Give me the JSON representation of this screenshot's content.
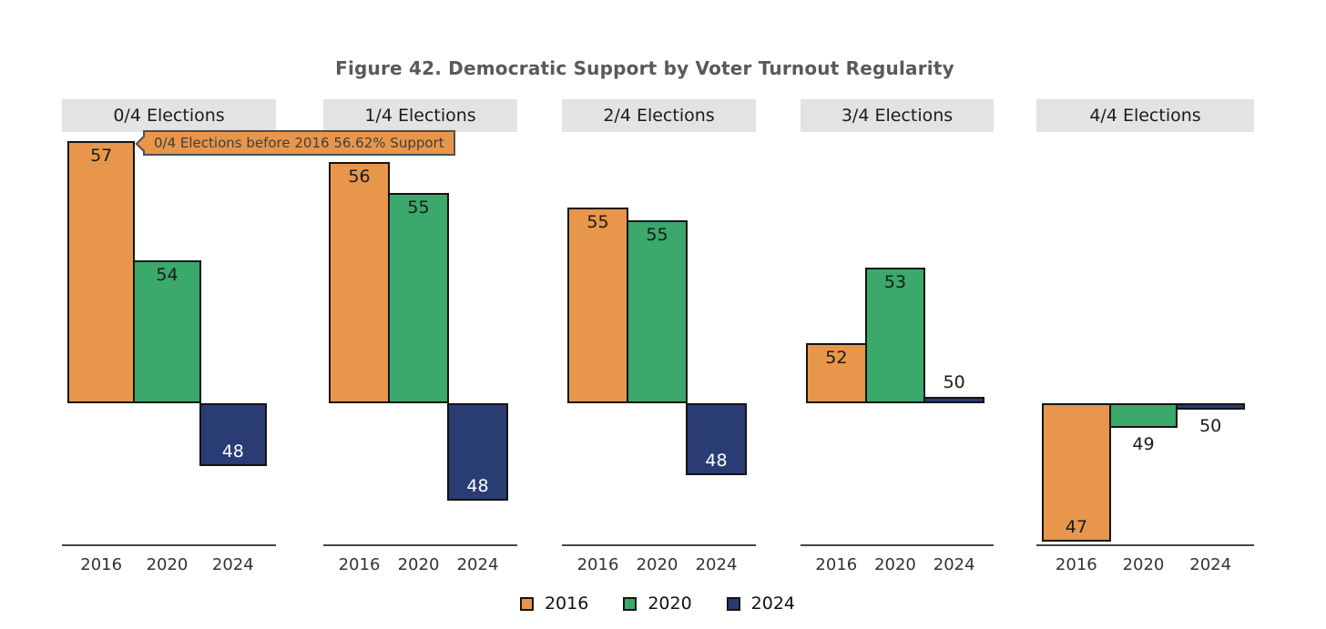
{
  "title": "Figure 42. Democratic Support by Voter Turnout Regularity",
  "tooltip": {
    "text": "0/4 Elections before 2016 56.62% Support"
  },
  "colors": {
    "series_2016": "#E8964B",
    "series_2020": "#3AA96B",
    "series_2024": "#293D74",
    "bar_border": "#141414",
    "header_bg": "#E3E3E3",
    "title_text": "#595959",
    "tooltip_border": "#4F4F4F"
  },
  "chart_data": {
    "type": "bar",
    "title": "Figure 42. Democratic Support by Voter Turnout Regularity",
    "baseline": 50,
    "x_categories": [
      "2016",
      "2020",
      "2024"
    ],
    "legend_position": "bottom",
    "grid": false,
    "series": [
      {
        "name": "2016",
        "color": "#E8964B",
        "dark_fill": false
      },
      {
        "name": "2020",
        "color": "#3AA96B",
        "dark_fill": false
      },
      {
        "name": "2024",
        "color": "#293D74",
        "dark_fill": true
      }
    ],
    "panels": [
      {
        "header": "0/4 Elections",
        "bars": [
          {
            "series": "2016",
            "label": "57",
            "value": 56.62
          },
          {
            "series": "2020",
            "label": "54",
            "value": 53.6
          },
          {
            "series": "2024",
            "label": "48",
            "value": 48.41
          }
        ]
      },
      {
        "header": "1/4 Elections",
        "bars": [
          {
            "series": "2016",
            "label": "56",
            "value": 56.1
          },
          {
            "series": "2020",
            "label": "55",
            "value": 55.32
          },
          {
            "series": "2024",
            "label": "48",
            "value": 47.54
          }
        ]
      },
      {
        "header": "2/4 Elections",
        "bars": [
          {
            "series": "2016",
            "label": "55",
            "value": 54.95
          },
          {
            "series": "2020",
            "label": "55",
            "value": 54.62
          },
          {
            "series": "2024",
            "label": "48",
            "value": 48.19
          }
        ]
      },
      {
        "header": "3/4 Elections",
        "bars": [
          {
            "series": "2016",
            "label": "52",
            "value": 51.52
          },
          {
            "series": "2020",
            "label": "53",
            "value": 53.42
          },
          {
            "series": "2024",
            "label": "50",
            "value": 50.15
          }
        ]
      },
      {
        "header": "4/4 Elections",
        "bars": [
          {
            "series": "2016",
            "label": "47",
            "value": 46.51
          },
          {
            "series": "2020",
            "label": "49",
            "value": 49.38
          },
          {
            "series": "2024",
            "label": "50",
            "value": 49.85
          }
        ]
      }
    ]
  }
}
